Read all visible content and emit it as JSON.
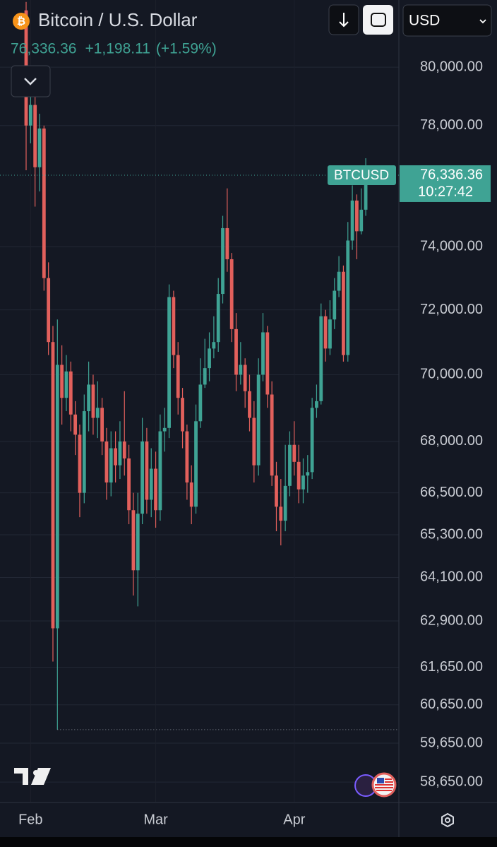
{
  "header": {
    "title": "Bitcoin / U.S. Dollar",
    "price": "76,336.36",
    "change": "+1,198.11",
    "change_pct": "(+1.59%)",
    "currency": "USD",
    "symbol": "BTCUSD",
    "countdown": "10:27:42"
  },
  "chart_data": {
    "type": "candlestick",
    "log_scale": true,
    "grid": true,
    "up_color": "#3fa394",
    "down_color": "#e2605c",
    "categories": [
      null,
      "Feb",
      null,
      null,
      null,
      null,
      null,
      null,
      null,
      null,
      null,
      null,
      null,
      null,
      null,
      null,
      null,
      null,
      null,
      null,
      null,
      null,
      null,
      null,
      null,
      null,
      null,
      null,
      null,
      "Mar",
      null,
      null,
      null,
      null,
      null,
      null,
      null,
      null,
      null,
      null,
      null,
      null,
      null,
      null,
      null,
      null,
      null,
      null,
      null,
      null,
      null,
      null,
      null,
      null,
      null,
      null,
      null,
      null,
      null,
      null,
      "Apr",
      null,
      null,
      null,
      null,
      null,
      null,
      null,
      null,
      null,
      null,
      null,
      null,
      null,
      null,
      null,
      null
    ],
    "open": [
      82000,
      78000,
      78700,
      76600,
      77900,
      73000,
      71000,
      62700,
      70300,
      69300,
      70100,
      68800,
      68200,
      66500,
      68900,
      69700,
      68700,
      69000,
      68000,
      66800,
      67800,
      67300,
      68000,
      67500,
      66000,
      64300,
      65900,
      68000,
      66300,
      67200,
      66000,
      68300,
      68400,
      72400,
      70600,
      69300,
      68300,
      66800,
      66100,
      68600,
      69700,
      70200,
      70800,
      71000,
      72500,
      74600,
      73600,
      71400,
      70000,
      70300,
      69500,
      68700,
      67300,
      70000,
      71300,
      69400,
      67000,
      66100,
      65700,
      66700,
      67900,
      67400,
      66600,
      67000,
      67100,
      69000,
      69200,
      71800,
      70800,
      71700,
      72600,
      73200,
      70600,
      74200,
      75500,
      74500,
      75200
    ],
    "high": [
      82300,
      79300,
      79000,
      78400,
      78000,
      73500,
      71500,
      71700,
      70900,
      70600,
      70400,
      69200,
      68500,
      69400,
      70400,
      70000,
      69800,
      69300,
      68400,
      68300,
      68300,
      68600,
      69500,
      67900,
      66500,
      66500,
      68700,
      68400,
      67800,
      67700,
      68800,
      69000,
      72800,
      72600,
      71000,
      69600,
      68500,
      67300,
      69100,
      70500,
      71100,
      71300,
      71800,
      73000,
      75000,
      75900,
      73800,
      71900,
      71000,
      70500,
      70000,
      69200,
      70500,
      71900,
      71500,
      69800,
      67400,
      66900,
      67900,
      68300,
      68600,
      67900,
      67500,
      67600,
      69300,
      69700,
      72200,
      72000,
      72300,
      73000,
      73700,
      73400,
      74800,
      76000,
      75700,
      75900,
      76900
    ],
    "low": [
      76500,
      77400,
      75300,
      75800,
      72600,
      70600,
      61800,
      60000,
      68500,
      68900,
      68300,
      67600,
      65800,
      66200,
      68300,
      68200,
      68100,
      67600,
      66300,
      66400,
      66800,
      66900,
      67000,
      65600,
      63600,
      63300,
      65600,
      65900,
      65800,
      65500,
      65700,
      67700,
      68100,
      70200,
      68800,
      67800,
      66300,
      65600,
      65900,
      68400,
      69600,
      69800,
      70500,
      70700,
      72200,
      73200,
      71000,
      69500,
      69700,
      69000,
      68300,
      66800,
      67000,
      69800,
      69000,
      66700,
      65400,
      65000,
      65400,
      66400,
      67000,
      66200,
      66200,
      66500,
      66900,
      68700,
      69100,
      70400,
      70600,
      71400,
      72400,
      70400,
      70400,
      73900,
      73600,
      74400,
      75000
    ],
    "close": [
      78000,
      78700,
      76600,
      77900,
      73000,
      71000,
      62700,
      70300,
      69300,
      70100,
      68800,
      68200,
      66500,
      68900,
      69700,
      68700,
      69000,
      68000,
      66800,
      67800,
      67300,
      68000,
      67500,
      66000,
      64300,
      65900,
      68000,
      66300,
      67200,
      66000,
      68300,
      68400,
      72400,
      70600,
      69300,
      68300,
      66800,
      66100,
      68600,
      69700,
      70200,
      70800,
      71000,
      72500,
      74600,
      73600,
      71400,
      70000,
      70300,
      69500,
      68700,
      67300,
      70000,
      71300,
      69400,
      67000,
      66100,
      65700,
      66700,
      67900,
      67400,
      66600,
      67000,
      67100,
      69000,
      69200,
      71800,
      70800,
      71700,
      72600,
      73200,
      70600,
      74200,
      75500,
      74500,
      75200,
      76336.36
    ],
    "ylim": [
      58150,
      82370
    ],
    "yticks": [
      {
        "value": 80000,
        "label": "80,000.00"
      },
      {
        "value": 78000,
        "label": "78,000.00"
      },
      {
        "value": 74000,
        "label": "74,000.00"
      },
      {
        "value": 72000,
        "label": "72,000.00"
      },
      {
        "value": 70000,
        "label": "70,000.00"
      },
      {
        "value": 68000,
        "label": "68,000.00"
      },
      {
        "value": 66500,
        "label": "66,500.00"
      },
      {
        "value": 65300,
        "label": "65,300.00"
      },
      {
        "value": 64100,
        "label": "64,100.00"
      },
      {
        "value": 62900,
        "label": "62,900.00"
      },
      {
        "value": 61650,
        "label": "61,650.00"
      },
      {
        "value": 60650,
        "label": "60,650.00"
      },
      {
        "value": 59650,
        "label": "59,650.00"
      },
      {
        "value": 58650,
        "label": "58,650.00"
      }
    ]
  }
}
